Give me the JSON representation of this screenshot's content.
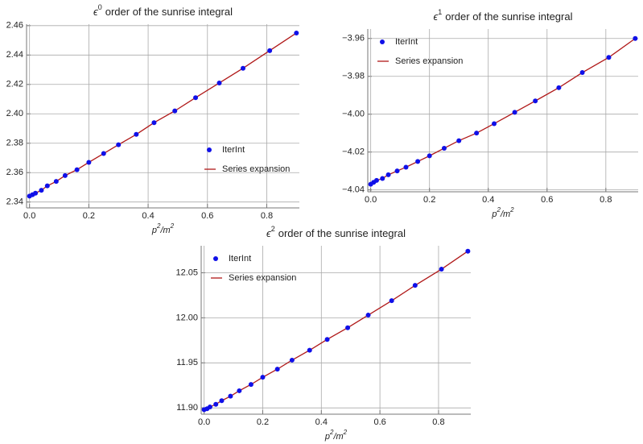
{
  "chart_data": [
    {
      "type": "scatter-line",
      "title": {
        "symbol": "ϵ",
        "superscript": "0",
        "text": "order of the sunrise integral"
      },
      "xlabel": [
        "p",
        "2",
        "/m",
        "2"
      ],
      "x": [
        0,
        0.01,
        0.02,
        0.04,
        0.06,
        0.09,
        0.12,
        0.16,
        0.2,
        0.25,
        0.3,
        0.36,
        0.42,
        0.49,
        0.56,
        0.64,
        0.72,
        0.81,
        0.9
      ],
      "series": [
        {
          "name": "IterInt",
          "kind": "points",
          "color": "#1010e8",
          "values": [
            2.344,
            2.345,
            2.346,
            2.348,
            2.351,
            2.354,
            2.358,
            2.362,
            2.367,
            2.373,
            2.379,
            2.386,
            2.394,
            2.402,
            2.411,
            2.421,
            2.431,
            2.443,
            2.455
          ]
        },
        {
          "name": "Series expansion",
          "kind": "line",
          "color": "#b01818",
          "values": [
            2.344,
            2.345,
            2.346,
            2.348,
            2.351,
            2.354,
            2.358,
            2.362,
            2.367,
            2.373,
            2.379,
            2.386,
            2.394,
            2.402,
            2.411,
            2.421,
            2.431,
            2.443,
            2.455
          ]
        }
      ],
      "xlim": [
        -0.01,
        0.91
      ],
      "ylim": [
        2.336,
        2.461
      ],
      "xticks": [
        {
          "value": 0,
          "label": "0.0"
        },
        0.2,
        0.4,
        0.6,
        0.8
      ],
      "yticks": [
        2.34,
        2.36,
        2.38,
        {
          "value": 2.4,
          "label": "2.40"
        },
        2.42,
        2.44,
        2.46
      ],
      "grid": true,
      "legend": "lower right"
    },
    {
      "type": "scatter-line",
      "title": {
        "symbol": "ϵ",
        "superscript": "1",
        "text": "order of the sunrise integral"
      },
      "xlabel": [
        "p",
        "2",
        "/m",
        "2"
      ],
      "x": [
        0,
        0.01,
        0.02,
        0.04,
        0.06,
        0.09,
        0.12,
        0.16,
        0.2,
        0.25,
        0.3,
        0.36,
        0.42,
        0.49,
        0.56,
        0.64,
        0.72,
        0.81,
        0.9
      ],
      "series": [
        {
          "name": "IterInt",
          "kind": "points",
          "color": "#1010e8",
          "values": [
            -4.037,
            -4.036,
            -4.035,
            -4.034,
            -4.032,
            -4.03,
            -4.028,
            -4.025,
            -4.022,
            -4.018,
            -4.014,
            -4.01,
            -4.005,
            -3.999,
            -3.993,
            -3.986,
            -3.978,
            -3.97,
            -3.96
          ]
        },
        {
          "name": "Series expansion",
          "kind": "line",
          "color": "#b01818",
          "values": [
            -4.037,
            -4.036,
            -4.035,
            -4.034,
            -4.032,
            -4.03,
            -4.028,
            -4.025,
            -4.022,
            -4.018,
            -4.014,
            -4.01,
            -4.005,
            -3.999,
            -3.993,
            -3.986,
            -3.978,
            -3.97,
            -3.96
          ]
        }
      ],
      "xlim": [
        -0.01,
        0.91
      ],
      "ylim": [
        -4.041,
        -3.955
      ],
      "xticks": [
        {
          "value": 0,
          "label": "0.0"
        },
        0.2,
        0.4,
        0.6,
        0.8
      ],
      "yticks": [
        {
          "value": -4.04,
          "label": "−4.04"
        },
        {
          "value": -4.02,
          "label": "−4.02"
        },
        {
          "value": -4,
          "label": "−4.00"
        },
        {
          "value": -3.98,
          "label": "−3.98"
        },
        {
          "value": -3.96,
          "label": "−3.96"
        }
      ],
      "grid": true,
      "legend": "upper left"
    },
    {
      "type": "scatter-line",
      "title": {
        "symbol": "ϵ",
        "superscript": "2",
        "text": "order of the sunrise integral"
      },
      "xlabel": [
        "p",
        "2",
        "/m",
        "2"
      ],
      "x": [
        0,
        0.01,
        0.02,
        0.04,
        0.06,
        0.09,
        0.12,
        0.16,
        0.2,
        0.25,
        0.3,
        0.36,
        0.42,
        0.49,
        0.56,
        0.64,
        0.72,
        0.81,
        0.9
      ],
      "series": [
        {
          "name": "IterInt",
          "kind": "points",
          "color": "#1010e8",
          "values": [
            11.898,
            11.899,
            11.901,
            11.904,
            11.908,
            11.913,
            11.919,
            11.926,
            11.934,
            11.943,
            11.953,
            11.964,
            11.976,
            11.989,
            12.003,
            12.019,
            12.036,
            12.054,
            12.074
          ]
        },
        {
          "name": "Series expansion",
          "kind": "line",
          "color": "#b01818",
          "values": [
            11.898,
            11.899,
            11.901,
            11.904,
            11.908,
            11.913,
            11.919,
            11.926,
            11.934,
            11.943,
            11.953,
            11.964,
            11.976,
            11.989,
            12.003,
            12.019,
            12.036,
            12.054,
            12.074
          ]
        }
      ],
      "xlim": [
        -0.01,
        0.91
      ],
      "ylim": [
        11.893,
        12.08
      ],
      "xticks": [
        {
          "value": 0,
          "label": "0.0"
        },
        0.2,
        0.4,
        0.6,
        0.8
      ],
      "yticks": [
        {
          "value": 11.9,
          "label": "11.90"
        },
        11.95,
        {
          "value": 12,
          "label": "12.00"
        },
        12.05
      ],
      "grid": true,
      "legend": "upper left"
    }
  ]
}
